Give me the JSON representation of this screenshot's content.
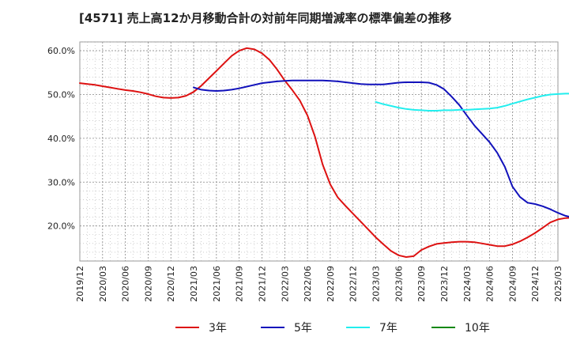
{
  "chart_data": {
    "type": "line",
    "title": "[4571]  売上高12か月移動合計の対前年同期増減率の標準偏差の推移",
    "xlabel": "",
    "ylabel": "",
    "x": [
      "2019/12",
      "2020/03",
      "2020/06",
      "2020/09",
      "2020/12",
      "2021/03",
      "2021/06",
      "2021/09",
      "2021/12",
      "2022/03",
      "2022/06",
      "2022/09",
      "2022/12",
      "2023/03",
      "2023/06",
      "2023/09",
      "2023/12",
      "2024/03",
      "2024/06",
      "2024/09",
      "2024/12",
      "2025/03"
    ],
    "y_ticks": [
      "20.0%",
      "30.0%",
      "40.0%",
      "50.0%",
      "60.0%"
    ],
    "ylim": [
      12,
      62
    ],
    "grid": true,
    "legend_position": "bottom",
    "series": [
      {
        "name": "3年",
        "color": "#dd1111",
        "points": [
          [
            "2019/12",
            52.6
          ],
          [
            "2020/01",
            52.4
          ],
          [
            "2020/02",
            52.2
          ],
          [
            "2020/03",
            51.9
          ],
          [
            "2020/04",
            51.6
          ],
          [
            "2020/05",
            51.3
          ],
          [
            "2020/06",
            51.0
          ],
          [
            "2020/07",
            50.8
          ],
          [
            "2020/08",
            50.5
          ],
          [
            "2020/09",
            50.1
          ],
          [
            "2020/10",
            49.6
          ],
          [
            "2020/11",
            49.3
          ],
          [
            "2020/12",
            49.2
          ],
          [
            "2021/01",
            49.3
          ],
          [
            "2021/02",
            49.7
          ],
          [
            "2021/03",
            50.6
          ],
          [
            "2021/04",
            52.0
          ],
          [
            "2021/05",
            53.7
          ],
          [
            "2021/06",
            55.4
          ],
          [
            "2021/07",
            57.1
          ],
          [
            "2021/08",
            58.8
          ],
          [
            "2021/09",
            60.0
          ],
          [
            "2021/10",
            60.6
          ],
          [
            "2021/11",
            60.3
          ],
          [
            "2021/12",
            59.4
          ],
          [
            "2022/01",
            57.9
          ],
          [
            "2022/02",
            55.7
          ],
          [
            "2022/03",
            53.2
          ],
          [
            "2022/04",
            51.0
          ],
          [
            "2022/05",
            48.6
          ],
          [
            "2022/06",
            45.2
          ],
          [
            "2022/07",
            40.3
          ],
          [
            "2022/08",
            34.0
          ],
          [
            "2022/09",
            29.5
          ],
          [
            "2022/10",
            26.5
          ],
          [
            "2022/11",
            24.6
          ],
          [
            "2022/12",
            22.8
          ],
          [
            "2023/01",
            21.0
          ],
          [
            "2023/02",
            19.2
          ],
          [
            "2023/03",
            17.4
          ],
          [
            "2023/04",
            15.8
          ],
          [
            "2023/05",
            14.3
          ],
          [
            "2023/06",
            13.3
          ],
          [
            "2023/07",
            12.9
          ],
          [
            "2023/08",
            13.1
          ],
          [
            "2023/09",
            14.5
          ],
          [
            "2023/10",
            15.3
          ],
          [
            "2023/11",
            15.9
          ],
          [
            "2023/12",
            16.1
          ],
          [
            "2024/01",
            16.3
          ],
          [
            "2024/02",
            16.4
          ],
          [
            "2024/03",
            16.4
          ],
          [
            "2024/04",
            16.3
          ],
          [
            "2024/05",
            16.0
          ],
          [
            "2024/06",
            15.7
          ],
          [
            "2024/07",
            15.4
          ],
          [
            "2024/08",
            15.4
          ],
          [
            "2024/09",
            15.8
          ],
          [
            "2024/10",
            16.5
          ],
          [
            "2024/11",
            17.4
          ],
          [
            "2024/12",
            18.4
          ],
          [
            "2025/01",
            19.6
          ],
          [
            "2025/02",
            20.8
          ],
          [
            "2025/03",
            21.5
          ],
          [
            "2025/04",
            21.8
          ],
          [
            "2025/05",
            21.9
          ],
          [
            "2025/06",
            21.9
          ]
        ]
      },
      {
        "name": "5年",
        "color": "#1111bb",
        "points": [
          [
            "2021/03",
            51.6
          ],
          [
            "2021/04",
            51.1
          ],
          [
            "2021/05",
            50.9
          ],
          [
            "2021/06",
            50.8
          ],
          [
            "2021/07",
            50.9
          ],
          [
            "2021/08",
            51.1
          ],
          [
            "2021/09",
            51.4
          ],
          [
            "2021/10",
            51.8
          ],
          [
            "2021/11",
            52.2
          ],
          [
            "2021/12",
            52.6
          ],
          [
            "2022/01",
            52.8
          ],
          [
            "2022/02",
            53.0
          ],
          [
            "2022/03",
            53.1
          ],
          [
            "2022/04",
            53.2
          ],
          [
            "2022/05",
            53.2
          ],
          [
            "2022/06",
            53.2
          ],
          [
            "2022/07",
            53.2
          ],
          [
            "2022/08",
            53.2
          ],
          [
            "2022/09",
            53.1
          ],
          [
            "2022/10",
            53.0
          ],
          [
            "2022/11",
            52.8
          ],
          [
            "2022/12",
            52.6
          ],
          [
            "2023/01",
            52.4
          ],
          [
            "2023/02",
            52.3
          ],
          [
            "2023/03",
            52.3
          ],
          [
            "2023/04",
            52.3
          ],
          [
            "2023/05",
            52.5
          ],
          [
            "2023/06",
            52.7
          ],
          [
            "2023/07",
            52.8
          ],
          [
            "2023/08",
            52.8
          ],
          [
            "2023/09",
            52.8
          ],
          [
            "2023/10",
            52.7
          ],
          [
            "2023/11",
            52.2
          ],
          [
            "2023/12",
            51.2
          ],
          [
            "2024/01",
            49.5
          ],
          [
            "2024/02",
            47.6
          ],
          [
            "2024/03",
            45.2
          ],
          [
            "2024/04",
            42.9
          ],
          [
            "2024/05",
            41.0
          ],
          [
            "2024/06",
            39.1
          ],
          [
            "2024/07",
            36.7
          ],
          [
            "2024/08",
            33.5
          ],
          [
            "2024/09",
            29.0
          ],
          [
            "2024/10",
            26.6
          ],
          [
            "2024/11",
            25.3
          ],
          [
            "2024/12",
            25.0
          ],
          [
            "2025/01",
            24.5
          ],
          [
            "2025/02",
            23.8
          ],
          [
            "2025/03",
            23.0
          ],
          [
            "2025/04",
            22.3
          ],
          [
            "2025/05",
            21.9
          ]
        ]
      },
      {
        "name": "7年",
        "color": "#22eeee",
        "points": [
          [
            "2023/03",
            48.3
          ],
          [
            "2023/04",
            47.8
          ],
          [
            "2023/05",
            47.4
          ],
          [
            "2023/06",
            47.0
          ],
          [
            "2023/07",
            46.7
          ],
          [
            "2023/08",
            46.5
          ],
          [
            "2023/09",
            46.4
          ],
          [
            "2023/10",
            46.3
          ],
          [
            "2023/11",
            46.3
          ],
          [
            "2023/12",
            46.4
          ],
          [
            "2024/01",
            46.4
          ],
          [
            "2024/02",
            46.5
          ],
          [
            "2024/03",
            46.5
          ],
          [
            "2024/04",
            46.6
          ],
          [
            "2024/05",
            46.7
          ],
          [
            "2024/06",
            46.8
          ],
          [
            "2024/07",
            47.0
          ],
          [
            "2024/08",
            47.4
          ],
          [
            "2024/09",
            47.9
          ],
          [
            "2024/10",
            48.4
          ],
          [
            "2024/11",
            48.9
          ],
          [
            "2024/12",
            49.3
          ],
          [
            "2025/01",
            49.7
          ],
          [
            "2025/02",
            50.0
          ],
          [
            "2025/03",
            50.1
          ],
          [
            "2025/04",
            50.2
          ],
          [
            "2025/05",
            50.2
          ]
        ]
      },
      {
        "name": "10年",
        "color": "#118811",
        "points": []
      }
    ]
  }
}
